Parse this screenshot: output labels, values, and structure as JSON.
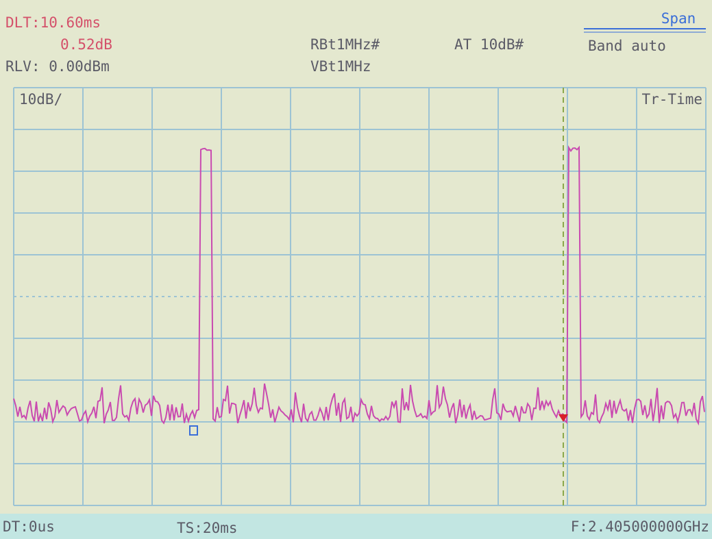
{
  "header": {
    "delta_time": "DLT:10.60ms",
    "delta_level": "0.52dB",
    "ref_level": "RLV: 0.00dBm",
    "rbw": "RBt1MHz#",
    "vbw": "VBt1MHz",
    "attenuation": "AT 10dB#",
    "menu_title": "Span",
    "menu_item": "Band auto"
  },
  "screen": {
    "scale": "10dB/",
    "trace_mode": "Tr-Time"
  },
  "footer": {
    "delay": "DT:0us",
    "sweep": "TS:20ms",
    "frequency": "F:2.405000000GHz"
  }
}
